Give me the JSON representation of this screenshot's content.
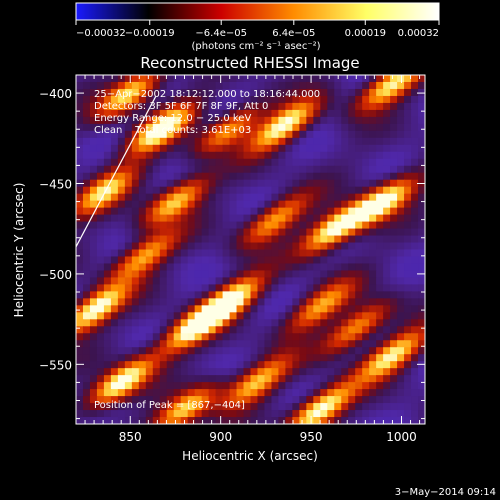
{
  "chart_data": {
    "type": "heatmap",
    "title": "Reconstructed RHESSI Image",
    "xlabel": "Heliocentric X (arcsec)",
    "ylabel": "Heliocentric Y (arcsec)",
    "xlim": [
      820,
      1013
    ],
    "ylim": [
      -583,
      -390
    ],
    "xticks": [
      850,
      900,
      950,
      1000
    ],
    "xtick_labels": [
      "850",
      "900",
      "950",
      "1000"
    ],
    "yticks": [
      -400,
      -450,
      -500,
      -550
    ],
    "ytick_labels": [
      "−400",
      "−450",
      "−500",
      "−550"
    ],
    "colorbar": {
      "range": [
        -0.00032,
        0.00032
      ],
      "ticks": [
        -0.00032,
        -0.00019,
        -6.4e-05,
        6.4e-05,
        0.00019,
        0.00032
      ],
      "tick_labels": [
        "−0.00032",
        "−0.00019",
        "−6.4e−05",
        "6.4e−05",
        "0.00019",
        "0.00032"
      ],
      "unit_label": "(photons cm⁻² s⁻¹ asec⁻²)",
      "colors": [
        "#1a1aff",
        "#000000",
        "#cc0000",
        "#ff8c00",
        "#ffff66",
        "#ffffff"
      ]
    },
    "annotations": [
      "25−Apr−2002 18:12:12.000 to 18:16:44.000",
      "Detectors: 3F 5F 6F 7F 8F 9F, Att 0",
      "Energy Range: 12.0 − 25.0 keV",
      "Clean    Total counts: 3.61E+03",
      "Position of Peak = [867,−404]"
    ],
    "limb_line": {
      "x": [
        820,
        864
      ],
      "y": [
        -485,
        -402
      ]
    },
    "peak": {
      "x": 867,
      "y": -404
    },
    "bright_sources": [
      {
        "x": 850,
        "y": -400
      },
      {
        "x": 867,
        "y": -420
      },
      {
        "x": 905,
        "y": -420
      },
      {
        "x": 935,
        "y": -418
      },
      {
        "x": 995,
        "y": -395
      },
      {
        "x": 930,
        "y": -470
      },
      {
        "x": 963,
        "y": -475
      },
      {
        "x": 875,
        "y": -460
      },
      {
        "x": 835,
        "y": -455
      },
      {
        "x": 830,
        "y": -520
      },
      {
        "x": 858,
        "y": -490
      },
      {
        "x": 885,
        "y": -530
      },
      {
        "x": 905,
        "y": -515
      },
      {
        "x": 955,
        "y": -518
      },
      {
        "x": 990,
        "y": -460
      },
      {
        "x": 995,
        "y": -545
      },
      {
        "x": 975,
        "y": -530
      },
      {
        "x": 845,
        "y": -560
      },
      {
        "x": 920,
        "y": -560
      },
      {
        "x": 880,
        "y": -575
      },
      {
        "x": 955,
        "y": -575
      }
    ]
  },
  "timestamp": "3−May−2014 09:14"
}
